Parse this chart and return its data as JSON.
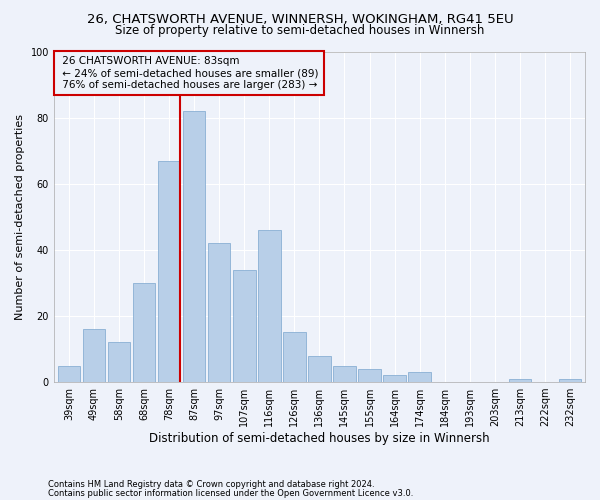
{
  "title": "26, CHATSWORTH AVENUE, WINNERSH, WOKINGHAM, RG41 5EU",
  "subtitle": "Size of property relative to semi-detached houses in Winnersh",
  "xlabel": "Distribution of semi-detached houses by size in Winnersh",
  "ylabel": "Number of semi-detached properties",
  "categories": [
    "39sqm",
    "49sqm",
    "58sqm",
    "68sqm",
    "78sqm",
    "87sqm",
    "97sqm",
    "107sqm",
    "116sqm",
    "126sqm",
    "136sqm",
    "145sqm",
    "155sqm",
    "164sqm",
    "174sqm",
    "184sqm",
    "193sqm",
    "203sqm",
    "213sqm",
    "222sqm",
    "232sqm"
  ],
  "values": [
    5,
    16,
    12,
    30,
    67,
    82,
    42,
    34,
    46,
    15,
    8,
    5,
    4,
    2,
    3,
    0,
    0,
    0,
    1,
    0,
    1
  ],
  "bar_color": "#b8cfe8",
  "bar_edge_color": "#8ab0d4",
  "vline_color": "#cc0000",
  "background_color": "#eef2fa",
  "grid_color": "#ffffff",
  "footer1": "Contains HM Land Registry data © Crown copyright and database right 2024.",
  "footer2": "Contains public sector information licensed under the Open Government Licence v3.0.",
  "ylim": [
    0,
    100
  ],
  "property_label": "26 CHATSWORTH AVENUE: 83sqm",
  "smaller_pct": "24%",
  "smaller_count": 89,
  "larger_pct": "76%",
  "larger_count": 283,
  "title_fontsize": 9.5,
  "subtitle_fontsize": 8.5,
  "ylabel_fontsize": 8,
  "xlabel_fontsize": 8.5,
  "tick_fontsize": 7,
  "annot_fontsize": 7.5,
  "footer_fontsize": 6
}
